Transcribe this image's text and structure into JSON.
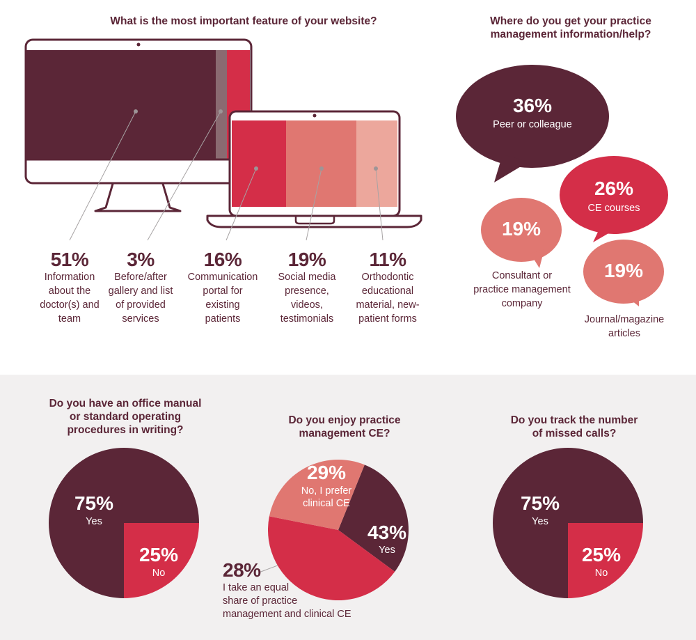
{
  "colors": {
    "plum": "#5b2637",
    "red": "#d42e48",
    "salmon": "#e07771",
    "pink": "#eca79c",
    "gray": "#8a6a71"
  },
  "website": {
    "question": "What is the most important feature of your website?",
    "items": [
      {
        "pct": "51%",
        "desc": [
          "Information",
          "about the",
          "doctor(s) and",
          "team"
        ]
      },
      {
        "pct": "3%",
        "desc": [
          "Before/after",
          "gallery and list",
          "of provided",
          "services"
        ]
      },
      {
        "pct": "16%",
        "desc": [
          "Communication",
          "portal for",
          "existing",
          "patients"
        ]
      },
      {
        "pct": "19%",
        "desc": [
          "Social media",
          "presence,",
          "videos,",
          "testimonials"
        ]
      },
      {
        "pct": "11%",
        "desc": [
          "Orthodontic",
          "educational",
          "material, new-",
          "patient forms"
        ]
      }
    ]
  },
  "info": {
    "question": [
      "Where do you get your practice",
      "management information/help?"
    ],
    "bubbles": [
      {
        "pct": "36%",
        "label": "Peer or colleague"
      },
      {
        "pct": "26%",
        "label": "CE courses"
      },
      {
        "pct": "19%",
        "label": [
          "Consultant or",
          "practice management",
          "company"
        ]
      },
      {
        "pct": "19%",
        "label": [
          "Journal/magazine",
          "articles"
        ]
      }
    ]
  },
  "chart_data": [
    {
      "type": "pie",
      "title": "Do you have an office manual or standard operating procedures in writing?",
      "categories": [
        "Yes",
        "No"
      ],
      "values": [
        75,
        25
      ]
    },
    {
      "type": "pie",
      "title": "Do you enjoy practice management CE?",
      "categories": [
        "No, I prefer clinical CE",
        "Yes",
        "I take an equal share of practice management and clinical CE"
      ],
      "values": [
        29,
        43,
        28
      ]
    },
    {
      "type": "pie",
      "title": "Do you track the number of missed calls?",
      "categories": [
        "Yes",
        "No"
      ],
      "values": [
        75,
        25
      ]
    }
  ],
  "pies": {
    "manual": {
      "q": [
        "Do you have an office manual",
        "or standard operating",
        "procedures in writing?"
      ],
      "yes_pct": "75%",
      "yes": "Yes",
      "no_pct": "25%",
      "no": "No"
    },
    "ce": {
      "q": [
        "Do you enjoy practice",
        "management CE?"
      ],
      "a_pct": "29%",
      "a": [
        "No, I prefer",
        "clinical CE"
      ],
      "b_pct": "43%",
      "b": "Yes",
      "c_pct": "28%",
      "c": [
        "I take an equal",
        "share of practice",
        "management and clinical CE"
      ]
    },
    "calls": {
      "q": [
        "Do you track the number",
        "of missed calls?"
      ],
      "yes_pct": "75%",
      "yes": "Yes",
      "no_pct": "25%",
      "no": "No"
    }
  }
}
